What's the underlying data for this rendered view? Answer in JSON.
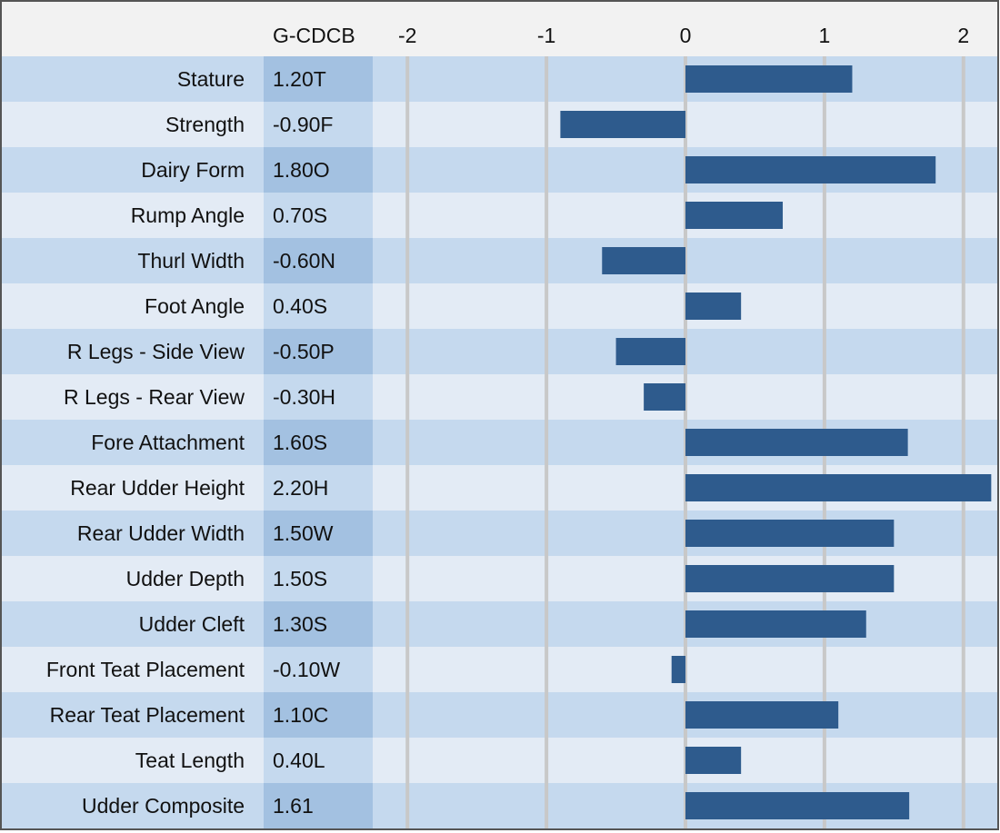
{
  "chart_data": {
    "type": "bar",
    "orientation": "horizontal",
    "column_header": "G-CDCB",
    "categories": [
      "Stature",
      "Strength",
      "Dairy Form",
      "Rump Angle",
      "Thurl Width",
      "Foot Angle",
      "R Legs - Side View",
      "R Legs - Rear View",
      "Fore Attachment",
      "Rear Udder Height",
      "Rear Udder Width",
      "Udder Depth",
      "Udder Cleft",
      "Front Teat Placement",
      "Rear Teat Placement",
      "Teat Length",
      "Udder Composite"
    ],
    "values": [
      1.2,
      -0.9,
      1.8,
      0.7,
      -0.6,
      0.4,
      -0.5,
      -0.3,
      1.6,
      2.2,
      1.5,
      1.5,
      1.3,
      -0.1,
      1.1,
      0.4,
      1.61
    ],
    "value_labels": [
      "1.20T",
      "-0.90F",
      "1.80O",
      "0.70S",
      "-0.60N",
      "0.40S",
      "-0.50P",
      "-0.30H",
      "1.60S",
      "2.20H",
      "1.50W",
      "1.50S",
      "1.30S",
      "-0.10W",
      "1.10C",
      "0.40L",
      "1.61"
    ],
    "color": "#2e5b8d",
    "xlim": [
      -2.25,
      2.25
    ],
    "xticks": [
      -2,
      -1,
      0,
      1,
      2
    ],
    "grid": true
  }
}
